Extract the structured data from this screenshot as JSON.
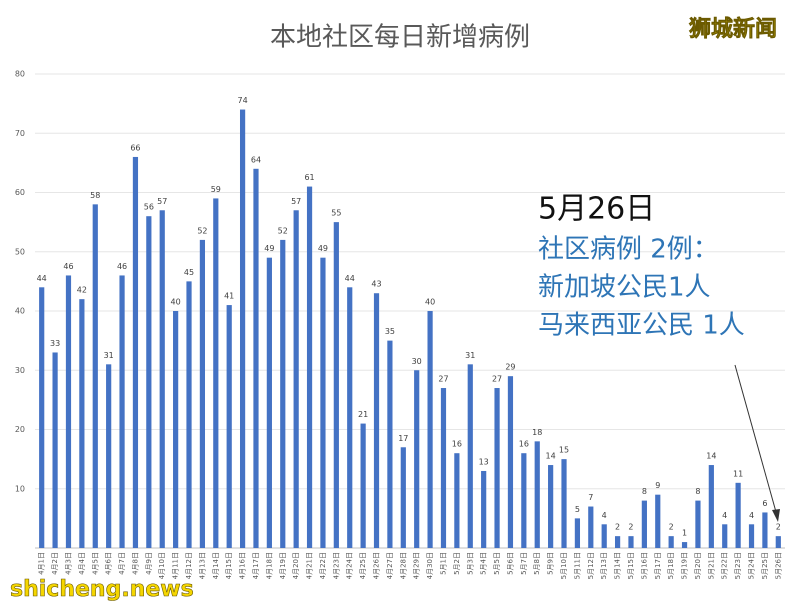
{
  "chart_data": {
    "type": "bar",
    "title": "本地社区每日新增病例",
    "categories": [
      "4月1日",
      "4月2日",
      "4月3日",
      "4月4日",
      "4月5日",
      "4月6日",
      "4月7日",
      "4月8日",
      "4月9日",
      "4月10日",
      "4月11日",
      "4月12日",
      "4月13日",
      "4月14日",
      "4月15日",
      "4月16日",
      "4月17日",
      "4月18日",
      "4月19日",
      "4月20日",
      "4月21日",
      "4月22日",
      "4月23日",
      "4月24日",
      "4月25日",
      "4月26日",
      "4月27日",
      "4月28日",
      "4月29日",
      "4月30日",
      "5月1日",
      "5月2日",
      "5月3日",
      "5月4日",
      "5月5日",
      "5月6日",
      "5月7日",
      "5月8日",
      "5月9日",
      "5月10日",
      "5月11日",
      "5月12日",
      "5月13日",
      "5月14日",
      "5月15日",
      "5月16日",
      "5月17日",
      "5月18日",
      "5月19日",
      "5月20日",
      "5月21日",
      "5月22日",
      "5月23日",
      "5月24日",
      "5月25日",
      "5月26日"
    ],
    "values": [
      44,
      33,
      46,
      42,
      58,
      31,
      46,
      66,
      56,
      57,
      40,
      45,
      52,
      59,
      41,
      74,
      64,
      49,
      52,
      57,
      61,
      49,
      55,
      44,
      21,
      43,
      35,
      17,
      30,
      40,
      27,
      16,
      31,
      13,
      27,
      29,
      16,
      18,
      14,
      15,
      5,
      7,
      4,
      2,
      2,
      8,
      9,
      2,
      1,
      8,
      14,
      4,
      11,
      4,
      6,
      2
    ],
    "color": "#4472c4",
    "ylim": [
      0,
      80
    ],
    "yticks": [
      10,
      20,
      30,
      40,
      50,
      60,
      70,
      80
    ],
    "grid": true,
    "annotations": [
      "5月26日",
      "社区病例 2例：",
      "新加坡公民1人",
      "马来西亚公民 1人"
    ],
    "watermarks": [
      "狮城新闻",
      "shicheng.news"
    ]
  }
}
